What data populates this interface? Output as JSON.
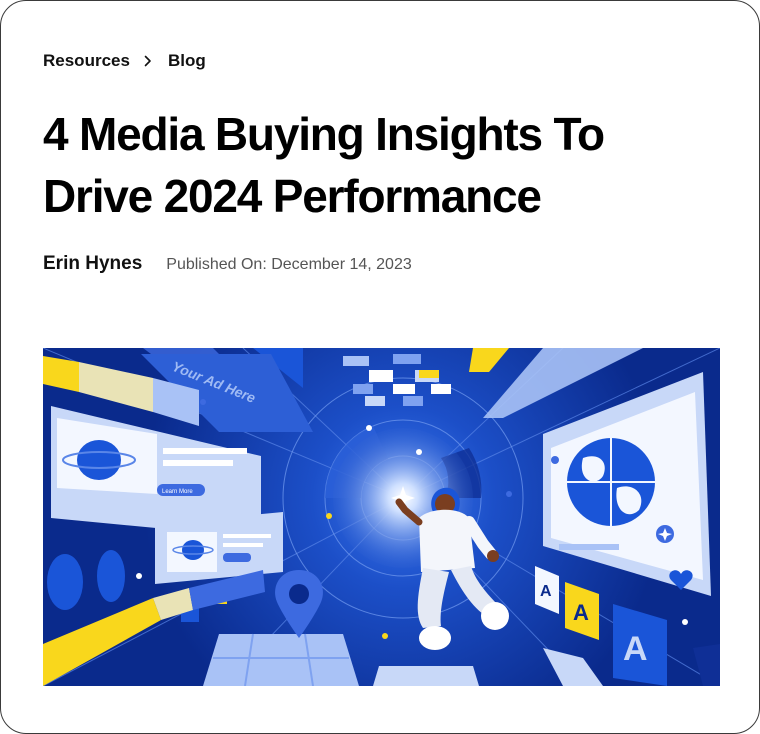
{
  "breadcrumb": {
    "items": [
      "Resources",
      "Blog"
    ],
    "separator_icon": "chevron-right-icon"
  },
  "article": {
    "title": "4 Media Buying Insights To Drive 2024 Performance",
    "author": "Erin Hynes",
    "published": "Published On: December 14, 2023"
  },
  "hero": {
    "billboard_text": "Your Ad Here",
    "button_text": "Learn More",
    "letter_tiles": [
      "A",
      "A",
      "A"
    ]
  },
  "colors": {
    "navy": "#0a2a8c",
    "royal_blue": "#1a55d8",
    "light_blue": "#c8d8f8",
    "yellow": "#f9d71c",
    "white": "#ffffff"
  }
}
